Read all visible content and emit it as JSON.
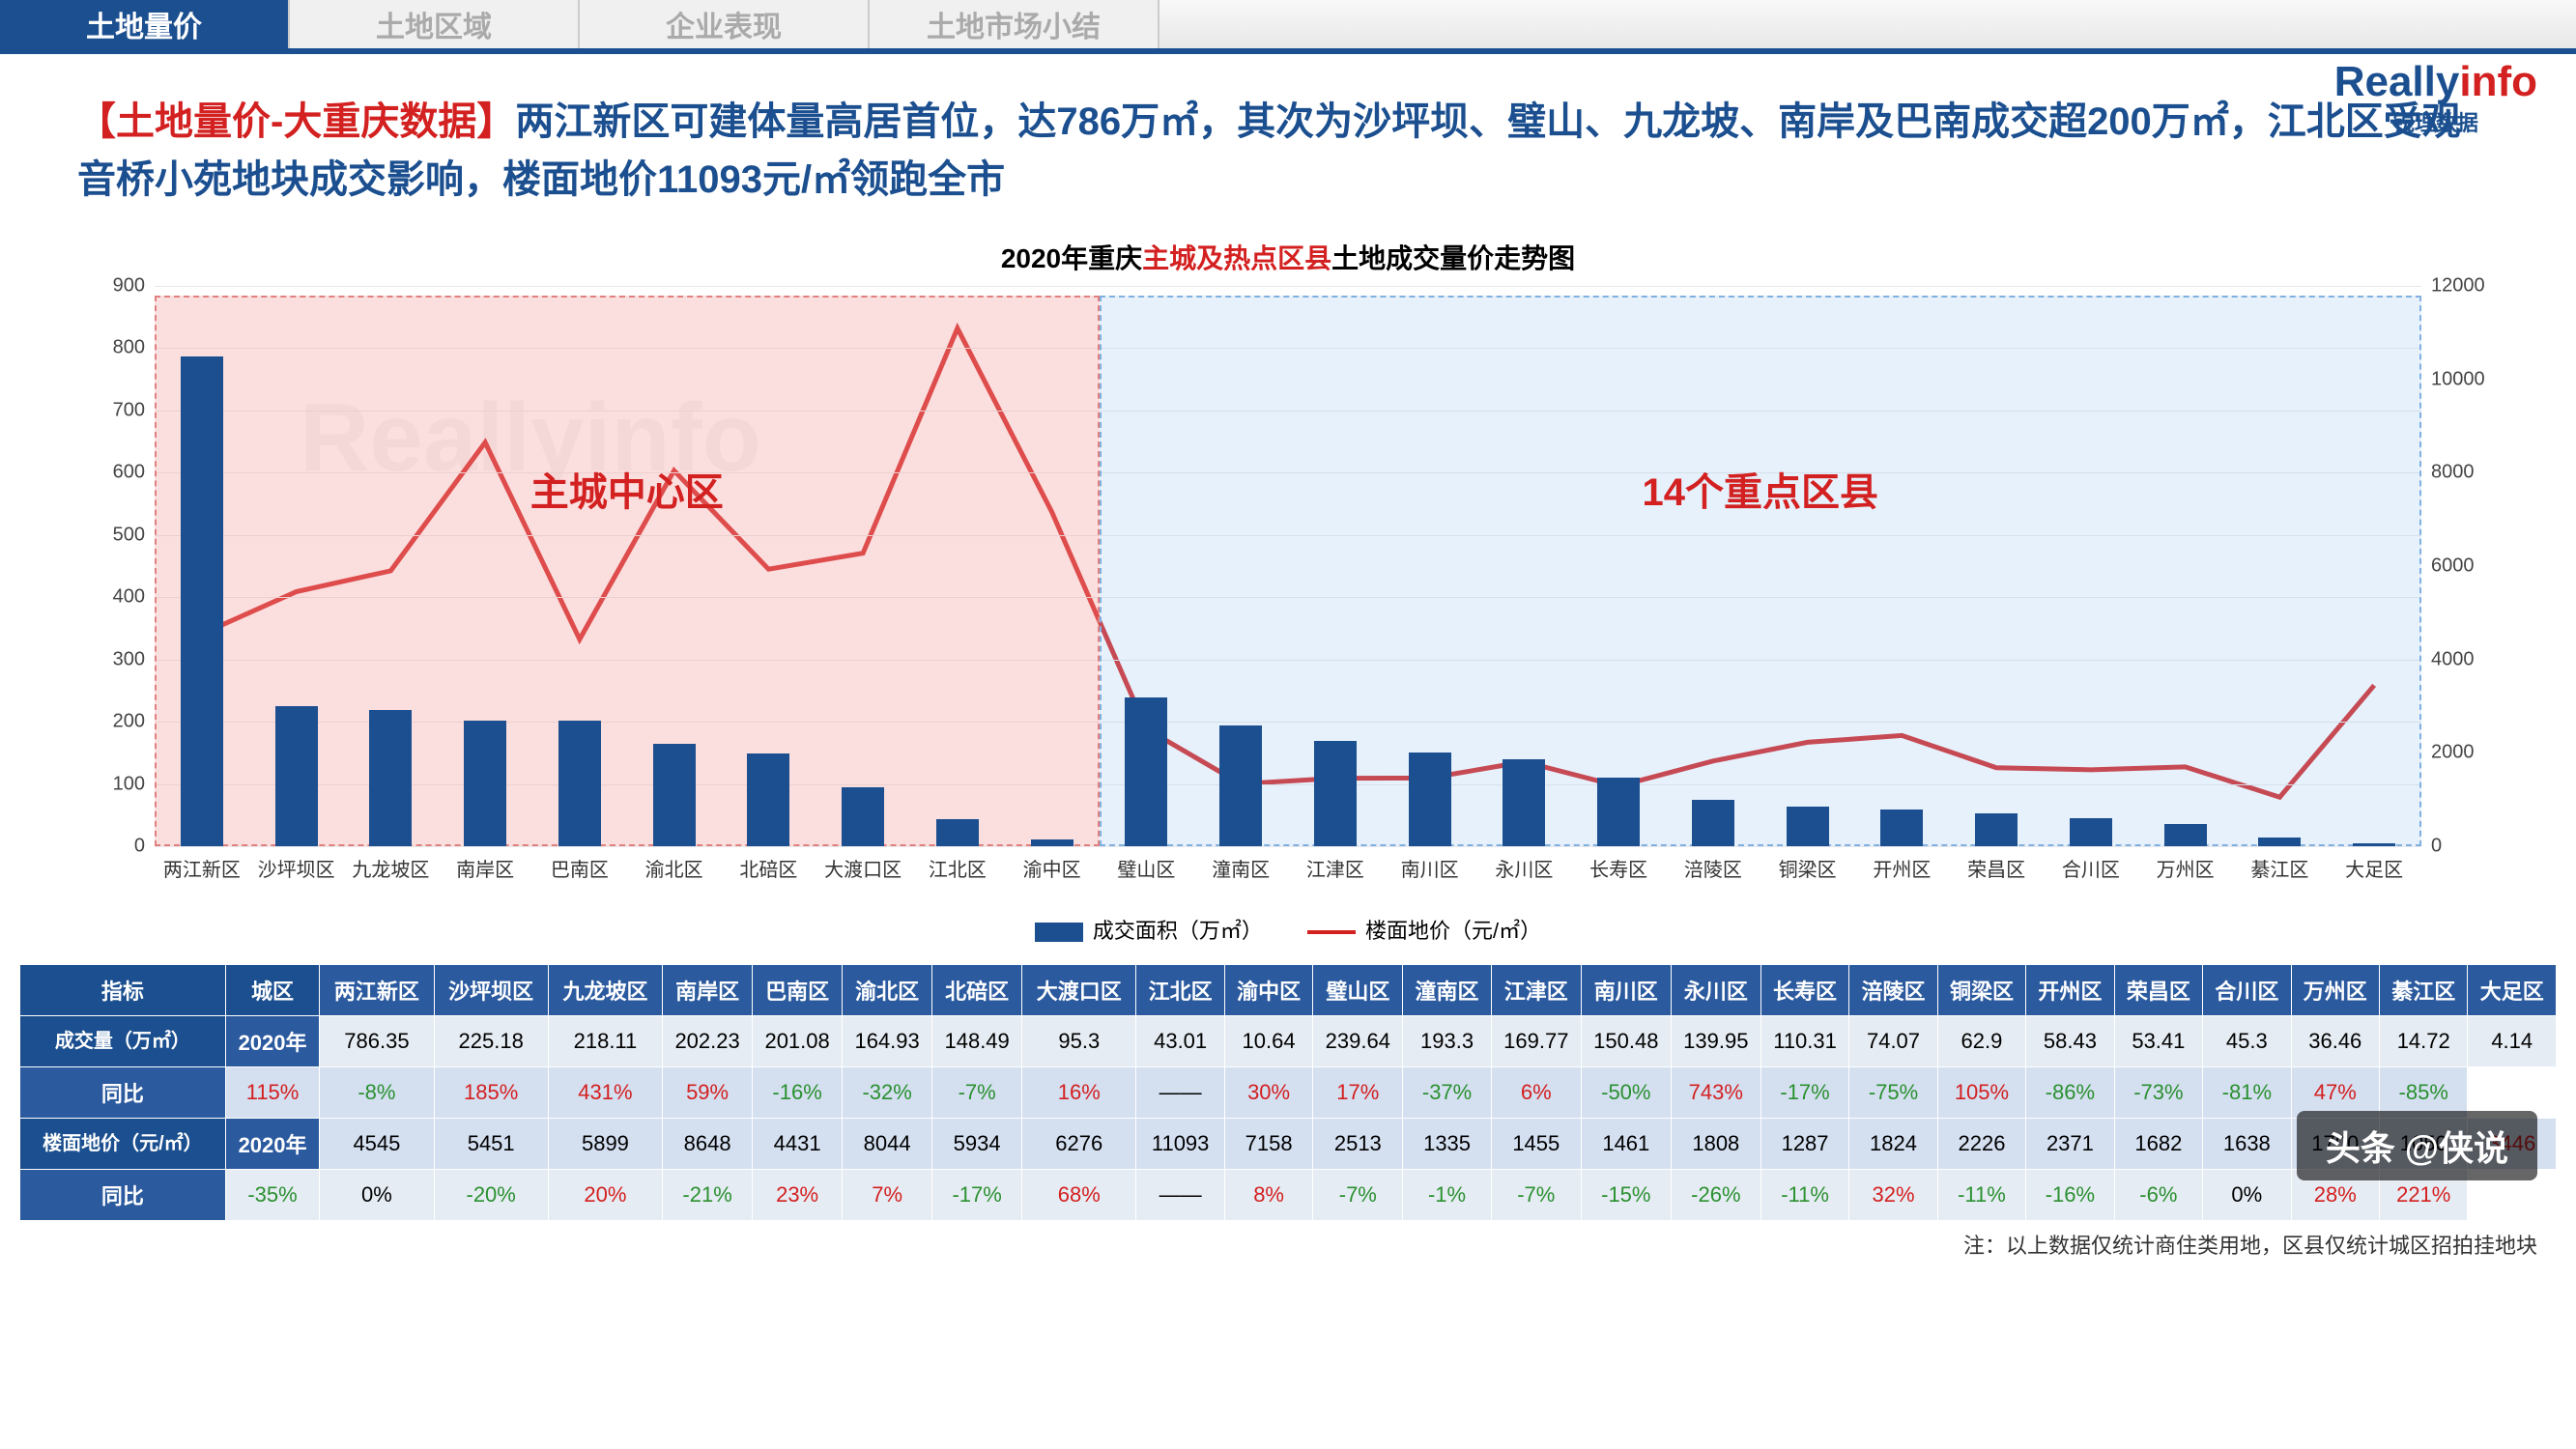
{
  "tabs": [
    "土地量价",
    "土地区域",
    "企业表现",
    "土地市场小结"
  ],
  "activeTab": 0,
  "logo": {
    "text": "Reallyinfo",
    "sub": "锐理数据",
    "color1": "#1b4f8f",
    "color2": "#d32020"
  },
  "title": {
    "red": "【土地量价-大重庆数据】",
    "rest": "两江新区可建体量高居首位，达786万㎡，其次为沙坪坝、璧山、九龙坡、南岸及巴南成交超200万㎡，江北区受观音桥小苑地块成交影响，楼面地价11093元/㎡领跑全市"
  },
  "chart": {
    "title_pre": "2020年重庆",
    "title_red": "主城及热点区县",
    "title_post": "土地成交量价走势图",
    "categories": [
      "两江新区",
      "沙坪坝区",
      "九龙坡区",
      "南岸区",
      "巴南区",
      "渝北区",
      "北碚区",
      "大渡口区",
      "江北区",
      "渝中区",
      "璧山区",
      "潼南区",
      "江津区",
      "南川区",
      "永川区",
      "长寿区",
      "涪陵区",
      "铜梁区",
      "开州区",
      "荣昌区",
      "合川区",
      "万州区",
      "綦江区",
      "大足区"
    ],
    "bar_values": [
      786.35,
      225.18,
      218.11,
      202.23,
      201.08,
      164.93,
      148.49,
      95.3,
      43.01,
      10.64,
      239.64,
      193.3,
      169.77,
      150.48,
      139.95,
      110.31,
      74.07,
      62.9,
      58.43,
      53.41,
      45.3,
      36.46,
      14.72,
      4.14
    ],
    "line_values": [
      4545,
      5451,
      5899,
      8648,
      4431,
      8044,
      5934,
      6276,
      11093,
      7158,
      2513,
      1335,
      1455,
      1461,
      1808,
      1287,
      1824,
      2226,
      2371,
      1682,
      1638,
      1700,
      1050,
      3446
    ],
    "bar_color": "#1b4f8f",
    "line_color": "#d32020",
    "y_left": {
      "min": 0,
      "max": 900,
      "step": 100
    },
    "y_right": {
      "min": 0,
      "max": 12000,
      "step": 2000
    },
    "zones": [
      {
        "label": "主城中心区",
        "from": 0,
        "to": 10,
        "class": "zone-a"
      },
      {
        "label": "14个重点区县",
        "from": 10,
        "to": 24,
        "class": "zone-b"
      }
    ],
    "legend": [
      "成交面积（万㎡）",
      "楼面地价（元/㎡）"
    ]
  },
  "table": {
    "indicator": "指标",
    "city": "城区",
    "groups": [
      {
        "name": "成交量（万㎡）",
        "rows": [
          {
            "label": "2020年",
            "vals": [
              "786.35",
              "225.18",
              "218.11",
              "202.23",
              "201.08",
              "164.93",
              "148.49",
              "95.3",
              "43.01",
              "10.64",
              "239.64",
              "193.3",
              "169.77",
              "150.48",
              "139.95",
              "110.31",
              "74.07",
              "62.9",
              "58.43",
              "53.41",
              "45.3",
              "36.46",
              "14.72",
              "4.14"
            ],
            "colors": []
          },
          {
            "label": "同比",
            "vals": [
              "115%",
              "-8%",
              "185%",
              "431%",
              "59%",
              "-16%",
              "-32%",
              "-7%",
              "16%",
              "——",
              "30%",
              "17%",
              "-37%",
              "6%",
              "-50%",
              "743%",
              "-17%",
              "-75%",
              "105%",
              "-86%",
              "-73%",
              "-81%",
              "47%",
              "-85%"
            ],
            "signs": [
              "+",
              "-",
              "+",
              "+",
              "+",
              "-",
              "-",
              "-",
              "+",
              "",
              "+",
              "+",
              "-",
              "+",
              "-",
              "+",
              "-",
              "-",
              "+",
              "-",
              "-",
              "-",
              "+",
              "-"
            ]
          }
        ]
      },
      {
        "name": "楼面地价（元/㎡）",
        "rows": [
          {
            "label": "2020年",
            "vals": [
              "4545",
              "5451",
              "5899",
              "8648",
              "4431",
              "8044",
              "5934",
              "6276",
              "11093",
              "7158",
              "2513",
              "1335",
              "1455",
              "1461",
              "1808",
              "1287",
              "1824",
              "2226",
              "2371",
              "1682",
              "1638",
              "1700",
              "1050",
              "3446"
            ],
            "colors": [
              "",
              "",
              "",
              "",
              "",
              "",
              "",
              "",
              "",
              "",
              "",
              "",
              "",
              "",
              "",
              "",
              "",
              "",
              "",
              "",
              "",
              "",
              "",
              "+"
            ]
          },
          {
            "label": "同比",
            "vals": [
              "-35%",
              "0%",
              "-20%",
              "20%",
              "-21%",
              "23%",
              "7%",
              "-17%",
              "68%",
              "——",
              "8%",
              "-7%",
              "-1%",
              "-7%",
              "-15%",
              "-26%",
              "-11%",
              "32%",
              "-11%",
              "-16%",
              "-6%",
              "0%",
              "28%",
              "221%"
            ],
            "signs": [
              "-",
              "",
              "−",
              "+",
              "-",
              "+",
              "+",
              "-",
              "+",
              "",
              "+",
              "-",
              "-",
              "-",
              "-",
              "-",
              "-",
              "+",
              "-",
              "-",
              "-",
              "",
              "+",
              "+"
            ]
          }
        ]
      }
    ]
  },
  "footnote": "注：以上数据仅统计商住类用地，区县仅统计城区招拍挂地块",
  "watermark": "头条 @侠说"
}
